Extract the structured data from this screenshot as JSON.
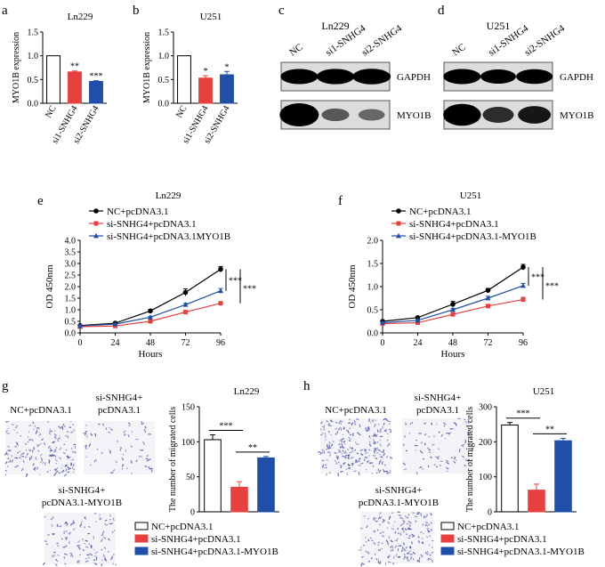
{
  "panel_letters": [
    "a",
    "b",
    "c",
    "d",
    "e",
    "f",
    "g",
    "h"
  ],
  "colors": {
    "nc": "#ffffff",
    "si_red": "#e8403f",
    "si_blue": "#1f4fa8",
    "black": "#000000",
    "cell": "#4a50a8"
  },
  "chart_data": [
    {
      "id": "a",
      "type": "bar",
      "title": "Ln229",
      "ylabel": "MYO1B expression",
      "xlabel": "",
      "categories": [
        "NC",
        "si1-SNHG4",
        "si2-SNHG4"
      ],
      "values": [
        1.0,
        0.66,
        0.46
      ],
      "errors": [
        0,
        0.02,
        0.015
      ],
      "ylim": [
        0,
        1.5
      ],
      "yticks": [
        "0.0",
        "0.5",
        "1.0",
        "1.5"
      ],
      "ytick_values": [
        0,
        0.5,
        1.0,
        1.5
      ],
      "significance": [
        "",
        "**",
        "***"
      ],
      "bar_colors": [
        "#ffffff",
        "#e8403f",
        "#1f4fa8"
      ]
    },
    {
      "id": "b",
      "type": "bar",
      "title": "U251",
      "ylabel": "MYO1B expression",
      "xlabel": "",
      "categories": [
        "NC",
        "si1-SNHG4",
        "si2-SNHG4"
      ],
      "values": [
        1.0,
        0.53,
        0.6
      ],
      "errors": [
        0,
        0.05,
        0.07
      ],
      "ylim": [
        0,
        1.5
      ],
      "yticks": [
        "0.0",
        "0.5",
        "1.0",
        "1.5"
      ],
      "ytick_values": [
        0,
        0.5,
        1.0,
        1.5
      ],
      "significance": [
        "",
        "*",
        "*"
      ],
      "bar_colors": [
        "#ffffff",
        "#e8403f",
        "#1f4fa8"
      ]
    },
    {
      "id": "e",
      "type": "line",
      "title": "Ln229",
      "xlabel": "Hours",
      "ylabel": "OD 450nm",
      "x": [
        0,
        24,
        48,
        72,
        96
      ],
      "xlim": [
        0,
        96
      ],
      "ylim": [
        0,
        4.0
      ],
      "yticks": [
        "0.0",
        "0.5",
        "1.0",
        "1.5",
        "2.0",
        "2.5",
        "3.0",
        "3.5",
        "4.0"
      ],
      "ytick_values": [
        0,
        0.5,
        1,
        1.5,
        2,
        2.5,
        3,
        3.5,
        4
      ],
      "xticks": [
        "0",
        "24",
        "48",
        "72",
        "96"
      ],
      "series": [
        {
          "name": "NC+pcDNA3.1",
          "values": [
            0.32,
            0.42,
            0.95,
            1.75,
            2.75
          ],
          "errors": [
            0.03,
            0.04,
            0.06,
            0.15,
            0.12
          ],
          "color": "#000000",
          "marker": "circle"
        },
        {
          "name": "si-SNHG4+pcDNA3.1",
          "values": [
            0.27,
            0.3,
            0.5,
            0.9,
            1.28
          ],
          "errors": [
            0.02,
            0.02,
            0.03,
            0.05,
            0.06
          ],
          "color": "#e8403f",
          "marker": "square"
        },
        {
          "name": "si-SNHG4+pcDNA3.1MYO1B",
          "values": [
            0.3,
            0.38,
            0.68,
            1.22,
            1.82
          ],
          "errors": [
            0.02,
            0.03,
            0.04,
            0.06,
            0.1
          ],
          "color": "#1f4fa8",
          "marker": "triangle"
        }
      ],
      "significance": [
        "***",
        "***"
      ]
    },
    {
      "id": "f",
      "type": "line",
      "title": "U251",
      "xlabel": "Hours",
      "ylabel": "OD 450nm",
      "x": [
        0,
        24,
        48,
        72,
        96
      ],
      "xlim": [
        0,
        96
      ],
      "ylim": [
        0,
        2.0
      ],
      "yticks": [
        "0.0",
        "0.5",
        "1.0",
        "1.5",
        "2.0"
      ],
      "ytick_values": [
        0,
        0.5,
        1.0,
        1.5,
        2.0
      ],
      "xticks": [
        "0",
        "24",
        "48",
        "72",
        "96"
      ],
      "series": [
        {
          "name": "NC+pcDNA3.1",
          "values": [
            0.25,
            0.33,
            0.62,
            0.92,
            1.42
          ],
          "errors": [
            0.02,
            0.02,
            0.06,
            0.04,
            0.06
          ],
          "color": "#000000",
          "marker": "circle"
        },
        {
          "name": "si-SNHG4+pcDNA3.1",
          "values": [
            0.2,
            0.22,
            0.4,
            0.58,
            0.72
          ],
          "errors": [
            0.02,
            0.02,
            0.02,
            0.03,
            0.05
          ],
          "color": "#e8403f",
          "marker": "square"
        },
        {
          "name": "si-SNHG4+pcDNA3.1-MYO1B",
          "values": [
            0.22,
            0.27,
            0.5,
            0.75,
            1.02
          ],
          "errors": [
            0.02,
            0.02,
            0.03,
            0.04,
            0.05
          ],
          "color": "#1f4fa8",
          "marker": "triangle"
        }
      ],
      "significance": [
        "***",
        "***"
      ]
    },
    {
      "id": "g",
      "type": "bar",
      "title": "Ln229",
      "ylabel": "The number of migrated cells",
      "xlabel": "",
      "categories": [
        "NC+pcDNA3.1",
        "si-SNHG4+pcDNA3.1",
        "si-SNHG4+pcDNA3.1-MYO1B"
      ],
      "values": [
        103,
        35,
        77
      ],
      "errors": [
        7,
        8,
        2
      ],
      "ylim": [
        0,
        150
      ],
      "yticks": [
        "0",
        "50",
        "100",
        "150"
      ],
      "ytick_values": [
        0,
        50,
        100,
        150
      ],
      "significance": [
        "***",
        "**"
      ],
      "bar_colors": [
        "#ffffff",
        "#e8403f",
        "#1f4fa8"
      ]
    },
    {
      "id": "h",
      "type": "bar",
      "title": "U251",
      "ylabel": "The number of migrated cells",
      "xlabel": "",
      "categories": [
        "NC+pcDNA3.1",
        "si-SNHG4+pcDNA3.1",
        "si-SNHG4+pcDNA3.1-MYO1B"
      ],
      "values": [
        248,
        62,
        203
      ],
      "errors": [
        7,
        17,
        7
      ],
      "ylim": [
        0,
        300
      ],
      "yticks": [
        "0",
        "100",
        "200",
        "300"
      ],
      "ytick_values": [
        0,
        100,
        200,
        300
      ],
      "significance": [
        "***",
        "**"
      ],
      "bar_colors": [
        "#ffffff",
        "#e8403f",
        "#1f4fa8"
      ]
    }
  ],
  "blots": [
    {
      "id": "c",
      "title": "Ln229",
      "lanes": [
        "NC",
        "si1-SNHG4",
        "si2-SNHG4"
      ],
      "bands": [
        "GAPDH",
        "MYO1B"
      ],
      "intensity": {
        "GAPDH": [
          0.9,
          0.92,
          0.95
        ],
        "MYO1B": [
          1.0,
          0.35,
          0.28
        ]
      }
    },
    {
      "id": "d",
      "title": "U251",
      "lanes": [
        "NC",
        "si1-SNHG4",
        "si2-SNHG4"
      ],
      "bands": [
        "GAPDH",
        "MYO1B"
      ],
      "intensity": {
        "GAPDH": [
          0.9,
          0.8,
          0.85
        ],
        "MYO1B": [
          0.92,
          0.55,
          0.65
        ]
      }
    }
  ],
  "migration_images": {
    "g": {
      "labels": [
        [
          "NC+pcDNA3.1"
        ],
        [
          "si-SNHG4+",
          "pcDNA3.1"
        ],
        [
          "si-SNHG4+",
          "pcDNA3.1-MYO1B"
        ]
      ],
      "density": [
        0.65,
        0.25,
        0.45
      ]
    },
    "h": {
      "labels": [
        [
          "NC+pcDNA3.1"
        ],
        [
          "si-SNHG4+",
          "pcDNA3.1"
        ],
        [
          "si-SNHG4+",
          "pcDNA3.1-MYO1B"
        ]
      ],
      "density": [
        0.95,
        0.3,
        0.7
      ]
    }
  }
}
